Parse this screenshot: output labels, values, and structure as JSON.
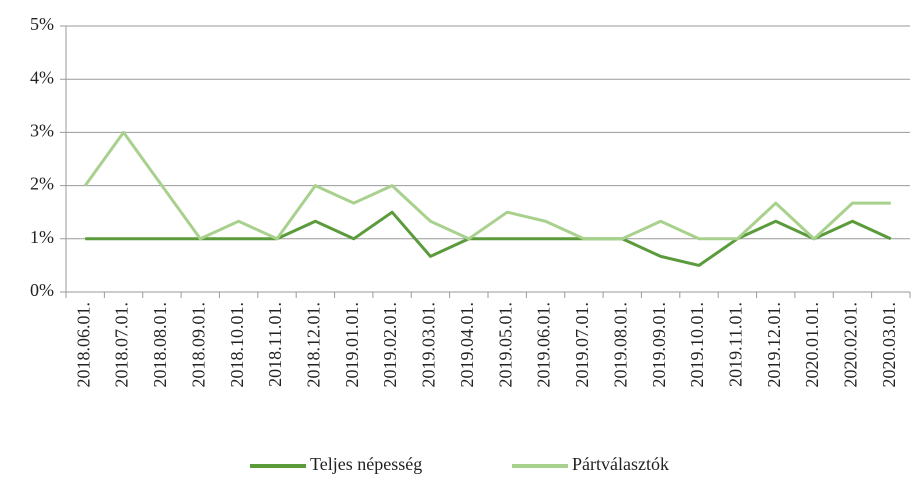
{
  "chart_data": {
    "type": "line",
    "categories": [
      "2018.06.01.",
      "2018.07.01.",
      "2018.08.01.",
      "2018.09.01.",
      "2018.10.01.",
      "2018.11.01.",
      "2018.12.01.",
      "2019.01.01.",
      "2019.02.01.",
      "2019.03.01.",
      "2019.04.01.",
      "2019.05.01.",
      "2019.06.01.",
      "2019.07.01.",
      "2019.08.01.",
      "2019.09.01.",
      "2019.10.01.",
      "2019.11.01.",
      "2019.12.01.",
      "2020.01.01.",
      "2020.02.01.",
      "2020.03.01."
    ],
    "series": [
      {
        "name": "Teljes népesség",
        "color": "#5b9b3c",
        "values": [
          1,
          1,
          1,
          1,
          1,
          1,
          1.33,
          1,
          1.5,
          0.67,
          1,
          1,
          1,
          1,
          1,
          0.67,
          0.5,
          1,
          1.33,
          1,
          1.33,
          1
        ]
      },
      {
        "name": "Pártválasztók",
        "color": "#a9d18e",
        "values": [
          2,
          3,
          2,
          1,
          1.33,
          1,
          2,
          1.67,
          2,
          1.33,
          1,
          1.5,
          1.33,
          1,
          1,
          1.33,
          1,
          1,
          1.67,
          1,
          1.67,
          1.67
        ]
      }
    ],
    "ylim": [
      0,
      5
    ],
    "yticks": [
      {
        "value": 0,
        "label": "0%"
      },
      {
        "value": 1,
        "label": "1%"
      },
      {
        "value": 2,
        "label": "2%"
      },
      {
        "value": 3,
        "label": "3%"
      },
      {
        "value": 4,
        "label": "4%"
      },
      {
        "value": 5,
        "label": "5%"
      }
    ],
    "grid": true,
    "legend": "bottom"
  }
}
